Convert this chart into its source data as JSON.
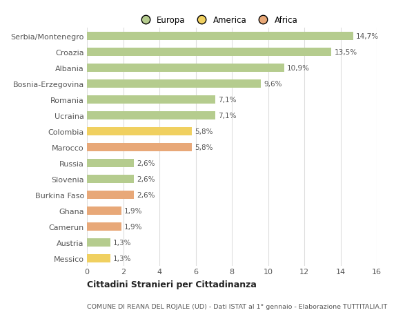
{
  "categories": [
    "Serbia/Montenegro",
    "Croazia",
    "Albania",
    "Bosnia-Erzegovina",
    "Romania",
    "Ucraina",
    "Colombia",
    "Marocco",
    "Russia",
    "Slovenia",
    "Burkina Faso",
    "Ghana",
    "Camerun",
    "Austria",
    "Messico"
  ],
  "values": [
    14.7,
    13.5,
    10.9,
    9.6,
    7.1,
    7.1,
    5.8,
    5.8,
    2.6,
    2.6,
    2.6,
    1.9,
    1.9,
    1.3,
    1.3
  ],
  "labels": [
    "14,7%",
    "13,5%",
    "10,9%",
    "9,6%",
    "7,1%",
    "7,1%",
    "5,8%",
    "5,8%",
    "2,6%",
    "2,6%",
    "2,6%",
    "1,9%",
    "1,9%",
    "1,3%",
    "1,3%"
  ],
  "colors": [
    "#b5cc8e",
    "#b5cc8e",
    "#b5cc8e",
    "#b5cc8e",
    "#b5cc8e",
    "#b5cc8e",
    "#f0d060",
    "#e8a878",
    "#b5cc8e",
    "#b5cc8e",
    "#e8a878",
    "#e8a878",
    "#e8a878",
    "#b5cc8e",
    "#f0d060"
  ],
  "legend": [
    {
      "label": "Europa",
      "color": "#b5cc8e"
    },
    {
      "label": "America",
      "color": "#f0d060"
    },
    {
      "label": "Africa",
      "color": "#e8a878"
    }
  ],
  "xlim": [
    0,
    16
  ],
  "xticks": [
    0,
    2,
    4,
    6,
    8,
    10,
    12,
    14,
    16
  ],
  "title_main": "Cittadini Stranieri per Cittadinanza",
  "title_sub": "COMUNE DI REANA DEL ROJALE (UD) - Dati ISTAT al 1° gennaio - Elaborazione TUTTITALIA.IT",
  "background_color": "#ffffff",
  "grid_color": "#dddddd",
  "bar_height": 0.55,
  "label_fontsize": 7.5,
  "ytick_fontsize": 8,
  "xtick_fontsize": 8
}
